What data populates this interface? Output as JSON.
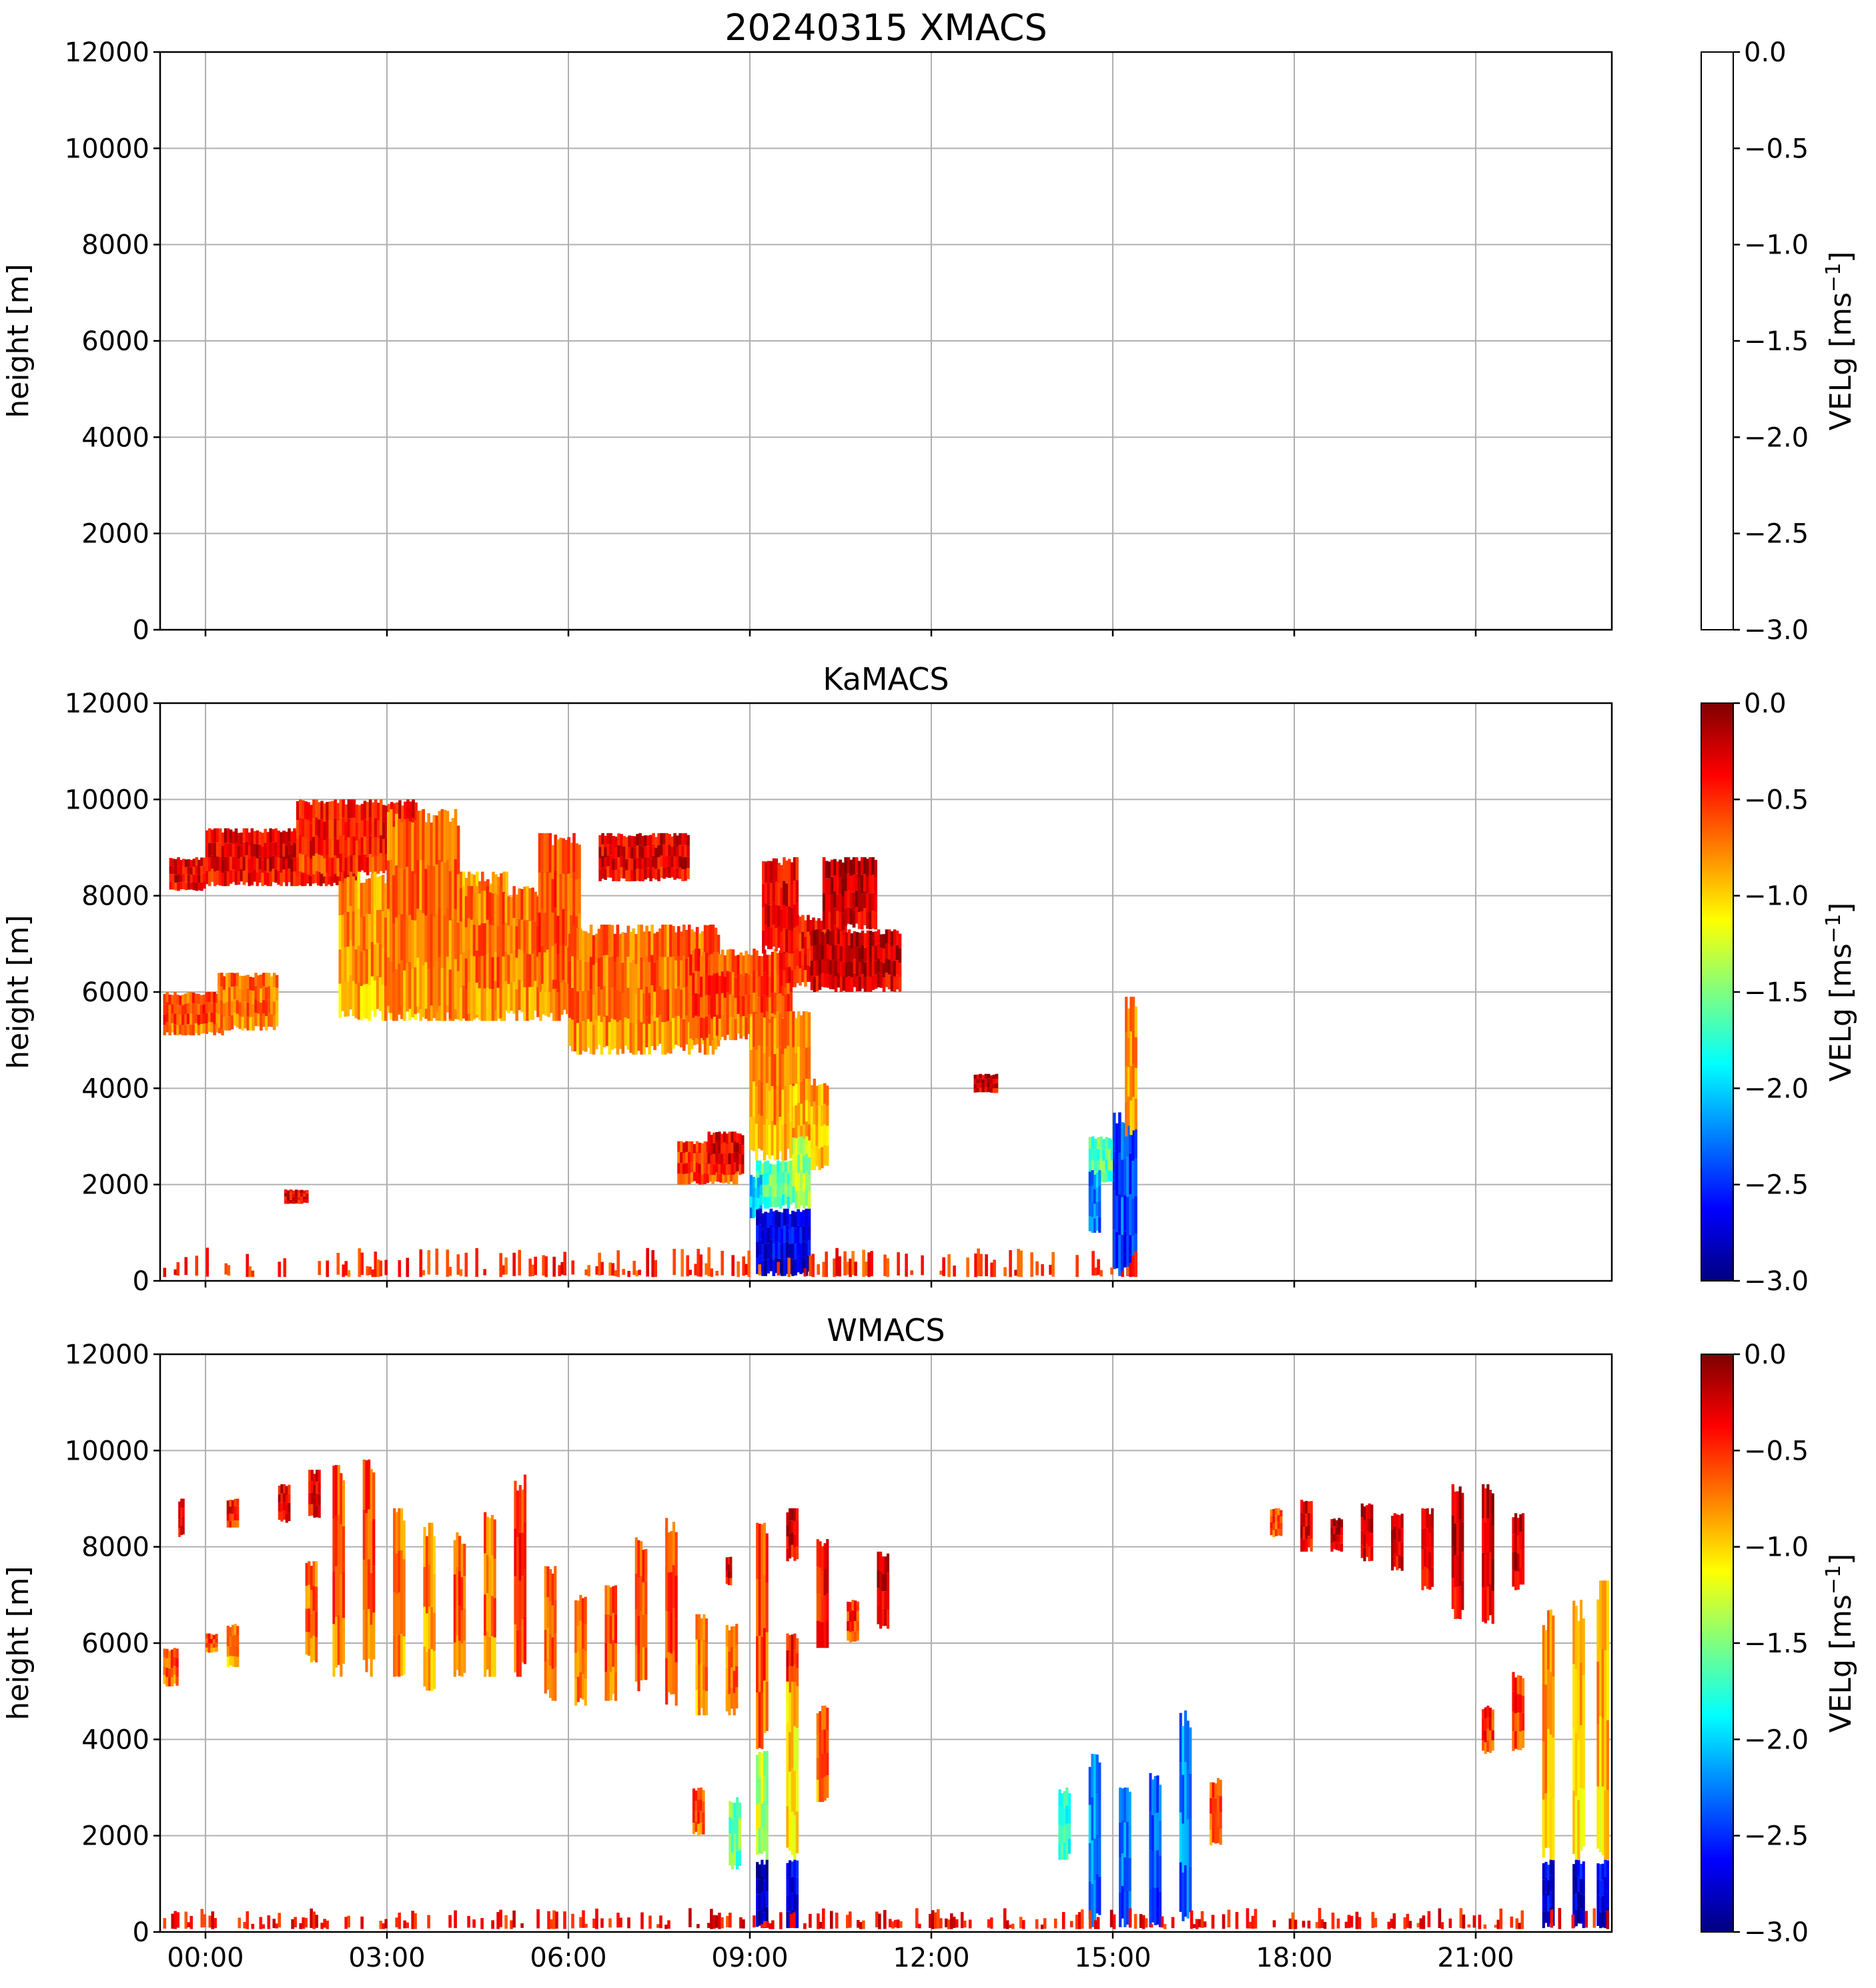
{
  "colormap": {
    "name": "jet",
    "stops": [
      "#00007f",
      "#0000ff",
      "#007fff",
      "#00ffff",
      "#7fff7f",
      "#ffff00",
      "#ff7f00",
      "#ff0000",
      "#7f0000"
    ]
  },
  "chart_data": [
    {
      "type": "heatmap",
      "title": "20240315 XMACS",
      "ylabel": "height [m]",
      "ylim": [
        0,
        12000
      ],
      "yticks": [
        0,
        2000,
        4000,
        6000,
        8000,
        10000,
        12000
      ],
      "xlim_hours": [
        -0.75,
        23.25
      ],
      "xticks_hours": [
        0,
        3,
        6,
        9,
        12,
        15,
        18,
        21
      ],
      "grid": true,
      "colorbar": {
        "label": "VELg [ms",
        "label_sup": "−1",
        "label_end": "]",
        "range": [
          -3.0,
          0.0
        ],
        "ticks": [
          "0.0",
          "−0.5",
          "−1.0",
          "−1.5",
          "−2.0",
          "−2.5",
          "−3.0"
        ]
      },
      "regions": []
    },
    {
      "type": "heatmap",
      "title": "KaMACS",
      "ylabel": "height [m]",
      "ylim": [
        0,
        12000
      ],
      "yticks": [
        0,
        2000,
        4000,
        6000,
        8000,
        10000,
        12000
      ],
      "xlim_hours": [
        -0.75,
        23.25
      ],
      "xticks_hours": [
        0,
        3,
        6,
        9,
        12,
        15,
        18,
        21
      ],
      "grid": true,
      "colorbar": {
        "label": "VELg [ms",
        "label_sup": "−1",
        "label_end": "]",
        "range": [
          -3.0,
          0.0
        ],
        "ticks": [
          "0.0",
          "−0.5",
          "−1.0",
          "−1.5",
          "−2.0",
          "−2.5",
          "−3.0"
        ]
      },
      "regions": [
        {
          "t0": -0.7,
          "t1": 0.3,
          "h0": 5100,
          "h1": 6000,
          "v": -0.6
        },
        {
          "t0": 0.2,
          "t1": 1.2,
          "h0": 5200,
          "h1": 6400,
          "v": -0.7
        },
        {
          "t0": -0.6,
          "t1": 0.0,
          "h0": 8100,
          "h1": 8800,
          "v": -0.3
        },
        {
          "t0": 0.0,
          "t1": 2.5,
          "h0": 8200,
          "h1": 9400,
          "v": -0.3
        },
        {
          "t0": 1.5,
          "t1": 3.5,
          "h0": 8400,
          "h1": 10000,
          "v": -0.4
        },
        {
          "t0": 2.2,
          "t1": 5.0,
          "h0": 5400,
          "h1": 8500,
          "v": -0.8
        },
        {
          "t0": 3.0,
          "t1": 4.2,
          "h0": 5400,
          "h1": 9800,
          "v": -0.7
        },
        {
          "t0": 4.2,
          "t1": 6.0,
          "h0": 5400,
          "h1": 8200,
          "v": -0.7
        },
        {
          "t0": 5.5,
          "t1": 6.2,
          "h0": 6000,
          "h1": 9300,
          "v": -0.6
        },
        {
          "t0": 6.0,
          "t1": 8.5,
          "h0": 4700,
          "h1": 7400,
          "v": -0.7
        },
        {
          "t0": 6.5,
          "t1": 8.0,
          "h0": 8300,
          "h1": 9300,
          "v": -0.3
        },
        {
          "t0": 8.0,
          "t1": 9.7,
          "h0": 5000,
          "h1": 6900,
          "v": -0.6
        },
        {
          "t0": 9.5,
          "t1": 10.6,
          "h0": 6100,
          "h1": 7600,
          "v": -0.4
        },
        {
          "t0": 9.2,
          "t1": 9.8,
          "h0": 6800,
          "h1": 8800,
          "v": -0.3
        },
        {
          "t0": 10.0,
          "t1": 11.5,
          "h0": 6000,
          "h1": 7300,
          "v": -0.2
        },
        {
          "t0": 10.2,
          "t1": 11.1,
          "h0": 7300,
          "h1": 8800,
          "v": -0.2
        },
        {
          "t0": 9.0,
          "t1": 10.0,
          "h0": 2500,
          "h1": 5600,
          "v": -0.8
        },
        {
          "t0": 9.7,
          "t1": 10.3,
          "h0": 2300,
          "h1": 4200,
          "v": -0.9
        },
        {
          "t0": 9.1,
          "t1": 9.7,
          "h0": 1500,
          "h1": 2500,
          "v": -1.6
        },
        {
          "t0": 9.0,
          "t1": 9.2,
          "h0": 1300,
          "h1": 2200,
          "v": -2.0
        },
        {
          "t0": 9.1,
          "t1": 10.0,
          "h0": 100,
          "h1": 1500,
          "v": -2.7
        },
        {
          "t0": 9.7,
          "t1": 10.0,
          "h0": 1500,
          "h1": 3000,
          "v": -1.4
        },
        {
          "t0": 7.8,
          "t1": 8.8,
          "h0": 2000,
          "h1": 2900,
          "v": -0.5
        },
        {
          "t0": 8.3,
          "t1": 8.9,
          "h0": 2200,
          "h1": 3100,
          "v": -0.3
        },
        {
          "t0": 1.3,
          "t1": 1.7,
          "h0": 1600,
          "h1": 1900,
          "v": -0.3
        },
        {
          "t0": 12.7,
          "t1": 13.1,
          "h0": 3900,
          "h1": 4300,
          "v": -0.2
        },
        {
          "t0": 14.6,
          "t1": 15.1,
          "h0": 2000,
          "h1": 3000,
          "v": -1.6
        },
        {
          "t0": 14.6,
          "t1": 14.8,
          "h0": 1000,
          "h1": 2300,
          "v": -2.2
        },
        {
          "t0": 15.0,
          "t1": 15.4,
          "h0": 100,
          "h1": 3500,
          "v": -2.4
        },
        {
          "t0": 15.2,
          "t1": 15.4,
          "h0": 3000,
          "h1": 5900,
          "v": -0.8
        },
        {
          "t0": -0.7,
          "t1": 15.4,
          "h0": 80,
          "h1": 700,
          "v": -0.4
        }
      ]
    },
    {
      "type": "heatmap",
      "title": "WMACS",
      "ylabel": "height [m]",
      "ylim": [
        0,
        12000
      ],
      "yticks": [
        0,
        2000,
        4000,
        6000,
        8000,
        10000,
        12000
      ],
      "xlim_hours": [
        -0.75,
        23.25
      ],
      "xticks_hours": [
        0,
        3,
        6,
        9,
        12,
        15,
        18,
        21
      ],
      "xtick_labels": [
        "00:00",
        "03:00",
        "06:00",
        "09:00",
        "12:00",
        "15:00",
        "18:00",
        "21:00"
      ],
      "grid": true,
      "colorbar": {
        "label": "VELg [ms",
        "label_sup": "−1",
        "label_end": "]",
        "range": [
          -3.0,
          0.0
        ],
        "ticks": [
          "0.0",
          "−0.5",
          "−1.0",
          "−1.5",
          "−2.0",
          "−2.5",
          "−3.0"
        ]
      },
      "regions": [
        {
          "t0": -0.7,
          "t1": -0.45,
          "h0": 5100,
          "h1": 5900,
          "v": -0.6
        },
        {
          "t0": -0.45,
          "t1": -0.35,
          "h0": 8200,
          "h1": 9000,
          "v": -0.3
        },
        {
          "t0": 0.0,
          "t1": 0.2,
          "h0": 5800,
          "h1": 6200,
          "v": -0.6
        },
        {
          "t0": 0.35,
          "t1": 0.55,
          "h0": 5500,
          "h1": 6400,
          "v": -0.8
        },
        {
          "t0": 0.35,
          "t1": 0.55,
          "h0": 8400,
          "h1": 9000,
          "v": -0.4
        },
        {
          "t0": 1.2,
          "t1": 1.4,
          "h0": 8500,
          "h1": 9300,
          "v": -0.3
        },
        {
          "t0": 1.7,
          "t1": 1.9,
          "h0": 8600,
          "h1": 9600,
          "v": -0.3
        },
        {
          "t0": 1.65,
          "t1": 1.85,
          "h0": 5600,
          "h1": 7700,
          "v": -0.7
        },
        {
          "t0": 2.1,
          "t1": 2.3,
          "h0": 5300,
          "h1": 9700,
          "v": -0.6
        },
        {
          "t0": 2.6,
          "t1": 2.8,
          "h0": 5300,
          "h1": 9900,
          "v": -0.6
        },
        {
          "t0": 3.1,
          "t1": 3.3,
          "h0": 5300,
          "h1": 8800,
          "v": -0.7
        },
        {
          "t0": 3.6,
          "t1": 3.8,
          "h0": 5000,
          "h1": 8500,
          "v": -0.8
        },
        {
          "t0": 4.1,
          "t1": 4.3,
          "h0": 5300,
          "h1": 8300,
          "v": -0.6
        },
        {
          "t0": 4.6,
          "t1": 4.8,
          "h0": 5300,
          "h1": 8800,
          "v": -0.7
        },
        {
          "t0": 5.1,
          "t1": 5.3,
          "h0": 5300,
          "h1": 9500,
          "v": -0.5
        },
        {
          "t0": 5.6,
          "t1": 5.8,
          "h0": 4800,
          "h1": 7600,
          "v": -0.7
        },
        {
          "t0": 6.1,
          "t1": 6.3,
          "h0": 4700,
          "h1": 7000,
          "v": -0.7
        },
        {
          "t0": 6.6,
          "t1": 6.8,
          "h0": 4800,
          "h1": 7200,
          "v": -0.6
        },
        {
          "t0": 7.1,
          "t1": 7.3,
          "h0": 5000,
          "h1": 8200,
          "v": -0.6
        },
        {
          "t0": 7.6,
          "t1": 7.8,
          "h0": 4700,
          "h1": 8600,
          "v": -0.6
        },
        {
          "t0": 8.1,
          "t1": 8.3,
          "h0": 4500,
          "h1": 6600,
          "v": -0.8
        },
        {
          "t0": 8.6,
          "t1": 8.8,
          "h0": 4500,
          "h1": 6400,
          "v": -0.7
        },
        {
          "t0": 8.6,
          "t1": 8.7,
          "h0": 7200,
          "h1": 7800,
          "v": -0.3
        },
        {
          "t0": 8.05,
          "t1": 8.25,
          "h0": 2000,
          "h1": 3000,
          "v": -0.6
        },
        {
          "t0": 9.1,
          "t1": 9.3,
          "h0": 3800,
          "h1": 8500,
          "v": -0.6
        },
        {
          "t0": 9.1,
          "t1": 9.3,
          "h0": 1500,
          "h1": 3800,
          "v": -1.3
        },
        {
          "t0": 9.1,
          "t1": 9.3,
          "h0": 80,
          "h1": 1500,
          "v": -2.8
        },
        {
          "t0": 8.65,
          "t1": 8.85,
          "h0": 1300,
          "h1": 2800,
          "v": -1.5
        },
        {
          "t0": 9.6,
          "t1": 9.8,
          "h0": 4800,
          "h1": 6200,
          "v": -0.4
        },
        {
          "t0": 9.6,
          "t1": 9.8,
          "h0": 7700,
          "h1": 8800,
          "v": -0.3
        },
        {
          "t0": 9.6,
          "t1": 9.8,
          "h0": 1500,
          "h1": 5200,
          "v": -1.0
        },
        {
          "t0": 9.6,
          "t1": 9.8,
          "h0": 80,
          "h1": 1500,
          "v": -2.7
        },
        {
          "t0": 10.1,
          "t1": 10.3,
          "h0": 5900,
          "h1": 8200,
          "v": -0.4
        },
        {
          "t0": 10.1,
          "t1": 10.3,
          "h0": 2700,
          "h1": 4700,
          "v": -0.7
        },
        {
          "t0": 10.6,
          "t1": 10.8,
          "h0": 6000,
          "h1": 6900,
          "v": -0.5
        },
        {
          "t0": 11.1,
          "t1": 11.3,
          "h0": 6300,
          "h1": 7900,
          "v": -0.3
        },
        {
          "t0": 14.1,
          "t1": 14.3,
          "h0": 1500,
          "h1": 3000,
          "v": -1.7
        },
        {
          "t0": 14.6,
          "t1": 14.8,
          "h0": 100,
          "h1": 3700,
          "v": -2.2
        },
        {
          "t0": 15.1,
          "t1": 15.3,
          "h0": 100,
          "h1": 3000,
          "v": -2.3
        },
        {
          "t0": 15.6,
          "t1": 15.8,
          "h0": 100,
          "h1": 3300,
          "v": -2.4
        },
        {
          "t0": 16.1,
          "t1": 16.3,
          "h0": 100,
          "h1": 4600,
          "v": -2.2
        },
        {
          "t0": 16.6,
          "t1": 16.8,
          "h0": 1800,
          "h1": 3200,
          "v": -0.6
        },
        {
          "t0": 17.6,
          "t1": 17.8,
          "h0": 8200,
          "h1": 8800,
          "v": -0.6
        },
        {
          "t0": 18.1,
          "t1": 18.3,
          "h0": 7900,
          "h1": 9000,
          "v": -0.3
        },
        {
          "t0": 18.6,
          "t1": 18.8,
          "h0": 7900,
          "h1": 8600,
          "v": -0.2
        },
        {
          "t0": 19.1,
          "t1": 19.3,
          "h0": 7700,
          "h1": 8900,
          "v": -0.2
        },
        {
          "t0": 19.6,
          "t1": 19.8,
          "h0": 7500,
          "h1": 8700,
          "v": -0.2
        },
        {
          "t0": 20.1,
          "t1": 20.3,
          "h0": 7100,
          "h1": 8800,
          "v": -0.2
        },
        {
          "t0": 20.6,
          "t1": 20.8,
          "h0": 6500,
          "h1": 9300,
          "v": -0.2
        },
        {
          "t0": 21.1,
          "t1": 21.3,
          "h0": 6400,
          "h1": 9300,
          "v": -0.2
        },
        {
          "t0": 21.6,
          "t1": 21.8,
          "h0": 7100,
          "h1": 8700,
          "v": -0.2
        },
        {
          "t0": 21.1,
          "t1": 21.3,
          "h0": 3700,
          "h1": 4700,
          "v": -0.5
        },
        {
          "t0": 21.6,
          "t1": 21.8,
          "h0": 3700,
          "h1": 5400,
          "v": -0.5
        },
        {
          "t0": 22.1,
          "t1": 22.3,
          "h0": 1500,
          "h1": 6700,
          "v": -0.8
        },
        {
          "t0": 22.1,
          "t1": 22.3,
          "h0": 80,
          "h1": 1500,
          "v": -2.7
        },
        {
          "t0": 22.6,
          "t1": 22.8,
          "h0": 1500,
          "h1": 6900,
          "v": -0.9
        },
        {
          "t0": 22.6,
          "t1": 22.8,
          "h0": 80,
          "h1": 1500,
          "v": -2.7
        },
        {
          "t0": 23.0,
          "t1": 23.2,
          "h0": 1500,
          "h1": 7300,
          "v": -0.9
        },
        {
          "t0": 23.0,
          "t1": 23.2,
          "h0": 80,
          "h1": 1500,
          "v": -2.6
        },
        {
          "t0": -0.7,
          "t1": 23.2,
          "h0": 60,
          "h1": 500,
          "v": -0.3
        }
      ]
    }
  ]
}
